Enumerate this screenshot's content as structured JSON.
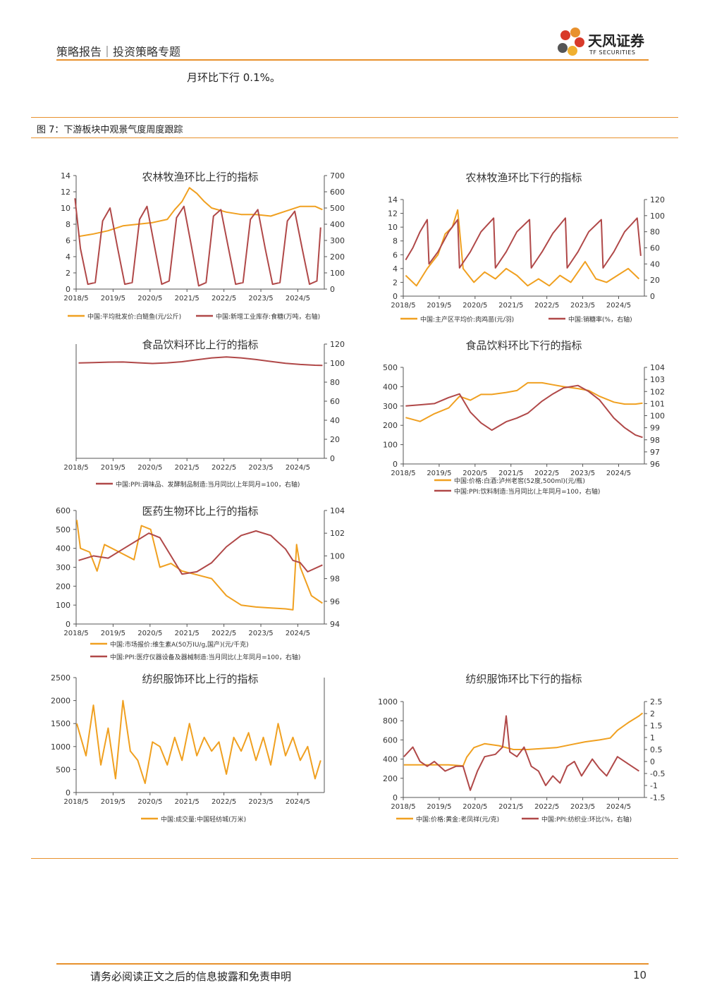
{
  "header": {
    "left": "策略报告｜投资策略专题",
    "logo_cn": "天风证券",
    "logo_en": "TF SECURITIES"
  },
  "intro_text": "月环比下行 0.1%。",
  "figure_title": "图 7：下游板块中观景气度周度跟踪",
  "footer": {
    "disclaimer": "请务必阅读正文之后的信息披露和免责申明",
    "page": "10"
  },
  "colors": {
    "orange": "#f0a020",
    "red": "#b04848",
    "accent": "#e8912d"
  },
  "chart_data": [
    {
      "id": "c1",
      "type": "line",
      "title": "农林牧渔环比上行的指标",
      "x_ticks": [
        "2018/5",
        "2019/5",
        "2020/5",
        "2021/5",
        "2022/5",
        "2023/5",
        "2024/5"
      ],
      "left_ticks": [
        "0",
        "2",
        "4",
        "6",
        "8",
        "10",
        "12",
        "14"
      ],
      "ylim_left": [
        0,
        14
      ],
      "right_ticks": [
        "0",
        "100",
        "200",
        "300",
        "400",
        "500",
        "600",
        "700"
      ],
      "ylim_right": [
        0,
        700
      ],
      "series": [
        {
          "name": "中国:平均批发价:白鲢鱼(元/公斤)",
          "axis": "left",
          "color": "orange",
          "x": [
            2018.4,
            2018.8,
            2019.2,
            2019.6,
            2020.0,
            2020.4,
            2020.8,
            2021.0,
            2021.2,
            2021.4,
            2021.6,
            2021.8,
            2022.0,
            2022.4,
            2022.8,
            2023.2,
            2023.6,
            2024.0,
            2024.4,
            2024.8,
            2025.0
          ],
          "values": [
            6.5,
            6.8,
            7.2,
            7.8,
            8.0,
            8.2,
            8.6,
            9.8,
            10.8,
            12.5,
            11.8,
            10.8,
            10.0,
            9.5,
            9.2,
            9.2,
            9.0,
            9.6,
            10.2,
            10.2,
            9.8
          ]
        },
        {
          "name": "中国:新增工业库存:食糖(万吨，右轴)",
          "axis": "right",
          "color": "red",
          "x": [
            2018.3,
            2018.45,
            2018.65,
            2018.85,
            2019.05,
            2019.25,
            2019.45,
            2019.65,
            2019.85,
            2020.05,
            2020.25,
            2020.45,
            2020.65,
            2020.85,
            2021.05,
            2021.25,
            2021.45,
            2021.65,
            2021.85,
            2022.05,
            2022.25,
            2022.45,
            2022.65,
            2022.85,
            2023.05,
            2023.25,
            2023.45,
            2023.65,
            2023.85,
            2024.05,
            2024.25,
            2024.45,
            2024.65,
            2024.85,
            2024.95
          ],
          "values": [
            560,
            250,
            30,
            40,
            420,
            500,
            260,
            30,
            40,
            430,
            510,
            270,
            30,
            50,
            440,
            510,
            270,
            20,
            40,
            450,
            490,
            260,
            30,
            40,
            430,
            490,
            250,
            30,
            40,
            420,
            480,
            250,
            30,
            50,
            380
          ]
        }
      ]
    },
    {
      "id": "c2",
      "type": "line",
      "title": "农林牧渔环比下行的指标",
      "x_ticks": [
        "2018/5",
        "2019/5",
        "2020/5",
        "2021/5",
        "2022/5",
        "2023/5",
        "2024/5"
      ],
      "left_ticks": [
        "0",
        "2",
        "4",
        "6",
        "8",
        "10",
        "12",
        "14"
      ],
      "ylim_left": [
        0,
        14
      ],
      "right_ticks": [
        "0",
        "20",
        "40",
        "60",
        "80",
        "100",
        "120"
      ],
      "ylim_right": [
        0,
        120
      ],
      "series": [
        {
          "name": "中国:主产区平均价:肉鸡苗(元/羽)",
          "axis": "left",
          "color": "orange",
          "x": [
            2018.4,
            2018.7,
            2019.0,
            2019.3,
            2019.5,
            2019.7,
            2019.85,
            2020.0,
            2020.3,
            2020.6,
            2020.9,
            2021.2,
            2021.5,
            2021.8,
            2022.1,
            2022.4,
            2022.7,
            2023.0,
            2023.2,
            2023.4,
            2023.7,
            2024.0,
            2024.3,
            2024.6,
            2024.9
          ],
          "values": [
            3.0,
            1.5,
            4.0,
            6.0,
            9.0,
            10.0,
            12.5,
            4.0,
            2.0,
            3.5,
            2.5,
            4.0,
            3.0,
            1.5,
            2.5,
            1.5,
            3.0,
            2.0,
            3.5,
            5.0,
            2.5,
            2.0,
            3.0,
            4.0,
            2.5
          ]
        },
        {
          "name": "中国:销糖率(%，右轴)",
          "axis": "right",
          "color": "red",
          "x": [
            2018.4,
            2018.6,
            2018.8,
            2019.0,
            2019.05,
            2019.3,
            2019.6,
            2019.85,
            2019.9,
            2020.2,
            2020.5,
            2020.85,
            2020.9,
            2021.2,
            2021.5,
            2021.85,
            2021.9,
            2022.2,
            2022.5,
            2022.85,
            2022.9,
            2023.2,
            2023.5,
            2023.85,
            2023.9,
            2024.2,
            2024.5,
            2024.85,
            2024.95
          ],
          "values": [
            45,
            60,
            80,
            95,
            40,
            55,
            80,
            95,
            35,
            55,
            80,
            97,
            35,
            55,
            80,
            95,
            35,
            55,
            78,
            97,
            35,
            55,
            80,
            95,
            35,
            55,
            80,
            97,
            50
          ]
        }
      ]
    },
    {
      "id": "c3",
      "type": "line",
      "title": "食品饮料环比上行的指标",
      "x_ticks": [
        "2018/5",
        "2019/5",
        "2020/5",
        "2021/5",
        "2022/5",
        "2023/5",
        "2024/5"
      ],
      "left_ticks": [],
      "ylim_left": [
        0,
        120
      ],
      "right_ticks": [
        "0",
        "20",
        "40",
        "60",
        "80",
        "100",
        "120"
      ],
      "ylim_right": [
        0,
        120
      ],
      "series": [
        {
          "name": "中国:PPI:调味品、发酵制品制造:当月同比(上年同月=100，右轴)",
          "axis": "right",
          "color": "red",
          "x": [
            2018.4,
            2018.8,
            2019.2,
            2019.6,
            2020.0,
            2020.4,
            2020.8,
            2021.2,
            2021.6,
            2022.0,
            2022.4,
            2022.8,
            2023.2,
            2023.6,
            2024.0,
            2024.4,
            2024.8,
            2025.0
          ],
          "values": [
            100.2,
            100.5,
            101.0,
            101.2,
            100.4,
            99.6,
            100.3,
            101.5,
            103.5,
            105.5,
            106.5,
            105.5,
            103.8,
            101.8,
            99.8,
            98.6,
            97.8,
            97.6
          ]
        }
      ]
    },
    {
      "id": "c4",
      "type": "line",
      "title": "食品饮料环比下行的指标",
      "x_ticks": [
        "2018/5",
        "2019/5",
        "2020/5",
        "2021/5",
        "2022/5",
        "2023/5",
        "2024/5"
      ],
      "left_ticks": [
        "0",
        "100",
        "200",
        "300",
        "400",
        "500"
      ],
      "ylim_left": [
        0,
        500
      ],
      "right_ticks": [
        "96",
        "97",
        "98",
        "99",
        "100",
        "101",
        "102",
        "103",
        "104"
      ],
      "ylim_right": [
        96,
        104
      ],
      "series": [
        {
          "name": "中国:价格:白酒:泸州老窖(52度,500ml)(元/瓶)",
          "axis": "left",
          "color": "orange",
          "x": [
            2018.4,
            2018.8,
            2019.2,
            2019.6,
            2019.9,
            2020.2,
            2020.5,
            2020.8,
            2021.2,
            2021.5,
            2021.8,
            2022.2,
            2022.5,
            2022.8,
            2023.2,
            2023.5,
            2023.8,
            2024.2,
            2024.5,
            2024.8,
            2025.0
          ],
          "values": [
            240,
            220,
            260,
            290,
            350,
            330,
            360,
            360,
            370,
            380,
            420,
            420,
            410,
            400,
            390,
            380,
            350,
            320,
            310,
            310,
            315
          ]
        },
        {
          "name": "中国:PPI:饮料制造:当月同比(上年同月=100，右轴)",
          "axis": "right",
          "color": "red",
          "x": [
            2018.4,
            2018.8,
            2019.2,
            2019.6,
            2019.9,
            2020.2,
            2020.5,
            2020.8,
            2021.2,
            2021.5,
            2021.8,
            2022.2,
            2022.5,
            2022.8,
            2023.2,
            2023.5,
            2023.8,
            2024.2,
            2024.5,
            2024.8,
            2025.0
          ],
          "values": [
            100.8,
            100.9,
            101.0,
            101.5,
            101.8,
            100.3,
            99.4,
            98.8,
            99.5,
            99.8,
            100.2,
            101.2,
            101.8,
            102.3,
            102.5,
            102.0,
            101.3,
            99.8,
            99.0,
            98.4,
            98.2
          ]
        }
      ]
    },
    {
      "id": "c5",
      "type": "line",
      "title": "医药生物环比上行的指标",
      "x_ticks": [
        "2018/5",
        "2019/5",
        "2020/5",
        "2021/5",
        "2022/5",
        "2023/5",
        "2024/5"
      ],
      "left_ticks": [
        "0",
        "100",
        "200",
        "300",
        "400",
        "500",
        "600"
      ],
      "ylim_left": [
        0,
        600
      ],
      "right_ticks": [
        "94",
        "96",
        "98",
        "100",
        "102",
        "104"
      ],
      "ylim_right": [
        94,
        104
      ],
      "series": [
        {
          "name": "中国:市场报价:维生素A(50万IU/g,国产)(元/千克)",
          "axis": "left",
          "color": "orange",
          "x": [
            2018.35,
            2018.45,
            2018.7,
            2018.9,
            2019.1,
            2019.5,
            2019.9,
            2020.1,
            2020.35,
            2020.6,
            2020.9,
            2021.2,
            2021.6,
            2022.0,
            2022.4,
            2022.8,
            2023.2,
            2023.6,
            2024.0,
            2024.2,
            2024.3,
            2024.4,
            2024.7,
            2025.0
          ],
          "values": [
            550,
            400,
            380,
            280,
            420,
            380,
            340,
            520,
            500,
            300,
            320,
            280,
            260,
            240,
            150,
            100,
            90,
            85,
            80,
            75,
            420,
            300,
            150,
            110
          ]
        },
        {
          "name": "中国:PPI:医疗仪器设备及器械制造:当月同比(上年同月=100，右轴)",
          "axis": "right",
          "color": "red",
          "x": [
            2018.4,
            2018.8,
            2019.2,
            2019.6,
            2020.0,
            2020.3,
            2020.6,
            2020.9,
            2021.2,
            2021.6,
            2022.0,
            2022.4,
            2022.8,
            2023.2,
            2023.6,
            2024.0,
            2024.2,
            2024.4,
            2024.6,
            2025.0
          ],
          "values": [
            99.6,
            100.0,
            99.8,
            100.6,
            101.4,
            102.0,
            101.6,
            100.0,
            98.4,
            98.6,
            99.4,
            100.8,
            101.8,
            102.2,
            101.8,
            100.6,
            99.6,
            99.4,
            98.6,
            99.2
          ]
        }
      ]
    },
    {
      "id": "c6",
      "type": "line",
      "title": "纺织服饰环比上行的指标",
      "x_ticks": [
        "2018/5",
        "2019/5",
        "2020/5",
        "2021/5",
        "2022/5",
        "2023/5",
        "2024/5"
      ],
      "left_ticks": [
        "0",
        "500",
        "1000",
        "1500",
        "2000",
        "2500"
      ],
      "ylim_left": [
        0,
        2500
      ],
      "right_ticks": [],
      "ylim_right": [
        0,
        2500
      ],
      "series": [
        {
          "name": "中国:成交量:中国轻纺城(万米)",
          "axis": "left",
          "color": "orange",
          "x": [
            2018.35,
            2018.6,
            2018.8,
            2019.0,
            2019.2,
            2019.4,
            2019.6,
            2019.8,
            2020.0,
            2020.2,
            2020.4,
            2020.6,
            2020.8,
            2021.0,
            2021.2,
            2021.4,
            2021.6,
            2021.8,
            2022.0,
            2022.2,
            2022.4,
            2022.6,
            2022.8,
            2023.0,
            2023.2,
            2023.4,
            2023.6,
            2023.8,
            2024.0,
            2024.2,
            2024.4,
            2024.6,
            2024.8,
            2024.95
          ],
          "values": [
            1500,
            800,
            1900,
            600,
            1400,
            300,
            2000,
            900,
            700,
            200,
            1100,
            1000,
            600,
            1200,
            700,
            1500,
            800,
            1200,
            900,
            1100,
            400,
            1200,
            900,
            1300,
            700,
            1200,
            600,
            1500,
            800,
            1200,
            700,
            1000,
            300,
            700
          ]
        }
      ]
    },
    {
      "id": "c7",
      "type": "line",
      "title": "纺织服饰环比下行的指标",
      "x_ticks": [
        "2018/5",
        "2019/5",
        "2020/5",
        "2021/5",
        "2022/5",
        "2023/5",
        "2024/5"
      ],
      "left_ticks": [
        "0",
        "200",
        "400",
        "600",
        "800",
        "1000"
      ],
      "ylim_left": [
        0,
        1000
      ],
      "right_ticks": [
        "-1.5",
        "-1",
        "-0.5",
        "0",
        "0.5",
        "1",
        "1.5",
        "2",
        "2.5"
      ],
      "ylim_right": [
        -1.5,
        2.5
      ],
      "series": [
        {
          "name": "中国:价格:黄金:老凤祥(元/克)",
          "axis": "left",
          "color": "orange",
          "x": [
            2018.35,
            2019.0,
            2019.6,
            2020.0,
            2020.1,
            2020.3,
            2020.6,
            2021.0,
            2021.4,
            2021.8,
            2022.2,
            2022.6,
            2023.0,
            2023.4,
            2023.8,
            2024.1,
            2024.3,
            2024.6,
            2024.9,
            2025.0
          ],
          "values": [
            340,
            340,
            340,
            330,
            420,
            520,
            560,
            540,
            500,
            500,
            510,
            520,
            550,
            580,
            600,
            620,
            700,
            780,
            850,
            880
          ]
        },
        {
          "name": "中国:PPI:纺织业:环比(%，右轴)",
          "axis": "right",
          "color": "red",
          "x": [
            2018.35,
            2018.6,
            2018.8,
            2019.0,
            2019.2,
            2019.5,
            2019.8,
            2020.0,
            2020.2,
            2020.4,
            2020.6,
            2020.9,
            2021.1,
            2021.2,
            2021.3,
            2021.5,
            2021.7,
            2021.9,
            2022.1,
            2022.3,
            2022.5,
            2022.7,
            2022.9,
            2023.1,
            2023.3,
            2023.6,
            2023.8,
            2024.0,
            2024.3,
            2024.6,
            2024.9
          ],
          "values": [
            0.2,
            0.6,
            0.0,
            -0.2,
            0.0,
            -0.4,
            -0.2,
            -0.2,
            -1.2,
            -0.4,
            0.2,
            0.3,
            0.6,
            1.9,
            0.4,
            0.2,
            0.6,
            -0.2,
            -0.4,
            -1.0,
            -0.6,
            -0.9,
            -0.2,
            0.0,
            -0.6,
            0.1,
            -0.3,
            -0.6,
            0.2,
            -0.1,
            -0.4
          ]
        }
      ]
    }
  ]
}
